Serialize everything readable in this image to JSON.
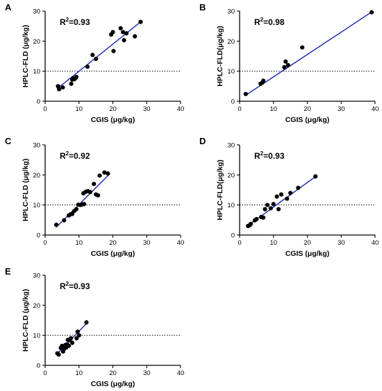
{
  "chart_data": [
    {
      "panel": "A",
      "type": "scatter",
      "xlabel": "CGIS (μg/kg)",
      "ylabel": "HPLC-FLD (μg/kg)",
      "r2_text": "0.93",
      "xlim": [
        0,
        40
      ],
      "ylim": [
        0,
        30
      ],
      "xticks": [
        0,
        10,
        20,
        30,
        40
      ],
      "yticks": [
        0,
        10,
        20,
        30
      ],
      "reference_y": 10,
      "fit": {
        "x": [
          3.8,
          28.2
        ],
        "y": [
          4.4,
          26.4
        ]
      },
      "points": {
        "x": [
          3.8,
          4.1,
          5.2,
          7.7,
          8.0,
          8.3,
          8.6,
          9.0,
          9.2,
          12.5,
          14.0,
          15.0,
          19.5,
          20.0,
          20.2,
          22.3,
          23.0,
          23.3,
          24.0,
          26.5,
          28.2
        ],
        "y": [
          5.0,
          4.0,
          4.6,
          5.8,
          7.2,
          7.6,
          7.3,
          7.7,
          8.1,
          11.5,
          15.4,
          14.1,
          22.2,
          23.0,
          16.7,
          24.3,
          23.0,
          20.3,
          22.6,
          21.6,
          26.4
        ]
      }
    },
    {
      "panel": "B",
      "type": "scatter",
      "xlabel": "CGIS (μg/kg)",
      "ylabel": "HPLC-FLD(μg/kg)",
      "r2_text": "0.98",
      "xlim": [
        0,
        40
      ],
      "ylim": [
        0,
        30
      ],
      "xticks": [
        0,
        10,
        20,
        30,
        40
      ],
      "yticks": [
        0,
        10,
        20,
        30
      ],
      "reference_y": 10,
      "fit": {
        "x": [
          1.8,
          39.0
        ],
        "y": [
          2.0,
          29.7
        ]
      },
      "points": {
        "x": [
          1.8,
          6.2,
          6.7,
          7.0,
          13.2,
          13.6,
          14.3,
          18.5,
          39.0
        ],
        "y": [
          2.4,
          5.8,
          6.2,
          6.8,
          11.3,
          13.2,
          12.0,
          17.9,
          29.6
        ]
      }
    },
    {
      "panel": "C",
      "type": "scatter",
      "xlabel": "CGIS (μg/kg)",
      "ylabel": "HPLC-FLD (μg/kg)",
      "r2_text": "0.92",
      "xlim": [
        0,
        40
      ],
      "ylim": [
        0,
        30
      ],
      "xticks": [
        0,
        10,
        20,
        30,
        40
      ],
      "yticks": [
        0,
        10,
        20,
        30
      ],
      "reference_y": 10,
      "fit": {
        "x": [
          3.3,
          19.2
        ],
        "y": [
          2.6,
          20.5
        ]
      },
      "points": {
        "x": [
          3.3,
          5.6,
          7.0,
          7.5,
          8.0,
          8.6,
          9.2,
          9.8,
          10.4,
          11.0,
          11.5,
          11.3,
          12.0,
          12.6,
          13.3,
          14.4,
          15.0,
          15.6,
          16.1,
          17.5,
          18.5
        ],
        "y": [
          3.4,
          4.9,
          6.5,
          6.9,
          7.0,
          8.0,
          8.6,
          10.1,
          10.0,
          10.2,
          10.3,
          13.9,
          14.4,
          14.6,
          14.3,
          17.0,
          13.5,
          13.2,
          19.8,
          20.8,
          20.5
        ]
      }
    },
    {
      "panel": "D",
      "type": "scatter",
      "xlabel": "CGIS (μg/kg)",
      "ylabel": "HPLC-FLD(μg/kg)",
      "r2_text": "0.93",
      "xlim": [
        0,
        40
      ],
      "ylim": [
        0,
        30
      ],
      "xticks": [
        0,
        10,
        20,
        30,
        40
      ],
      "yticks": [
        0,
        10,
        20,
        30
      ],
      "reference_y": 10,
      "fit": {
        "x": [
          2.3,
          22.6
        ],
        "y": [
          3.0,
          19.6
        ]
      },
      "points": {
        "x": [
          2.5,
          3.0,
          3.3,
          4.5,
          5.0,
          6.4,
          7.0,
          7.5,
          8.2,
          9.2,
          10.0,
          11.0,
          11.5,
          12.3,
          14.0,
          15.0,
          17.3,
          22.4
        ],
        "y": [
          3.0,
          3.3,
          3.7,
          4.9,
          5.3,
          6.0,
          5.8,
          8.6,
          10.0,
          8.9,
          10.3,
          12.8,
          8.6,
          13.5,
          12.1,
          14.0,
          15.7,
          19.5
        ]
      }
    },
    {
      "panel": "E",
      "type": "scatter",
      "xlabel": "CGIS (μg/kg)",
      "ylabel": "HPLC-FLD (μg/kg)",
      "r2_text": "0.93",
      "xlim": [
        0,
        40
      ],
      "ylim": [
        0,
        30
      ],
      "xticks": [
        0,
        10,
        20,
        30,
        40
      ],
      "yticks": [
        0,
        10,
        20,
        30
      ],
      "reference_y": 10,
      "fit": {
        "x": [
          3.6,
          12.6
        ],
        "y": [
          3.9,
          14.4
        ]
      },
      "points": {
        "x": [
          3.6,
          4.0,
          4.6,
          5.0,
          5.3,
          5.6,
          5.8,
          6.0,
          6.2,
          6.5,
          6.7,
          7.0,
          7.2,
          7.6,
          8.0,
          9.3,
          9.6,
          10.0,
          12.2
        ],
        "y": [
          4.0,
          3.6,
          5.8,
          6.5,
          4.6,
          5.5,
          6.4,
          6.8,
          5.9,
          7.0,
          8.5,
          6.5,
          8.4,
          9.0,
          7.5,
          9.0,
          11.2,
          10.0,
          14.3
        ]
      }
    }
  ]
}
